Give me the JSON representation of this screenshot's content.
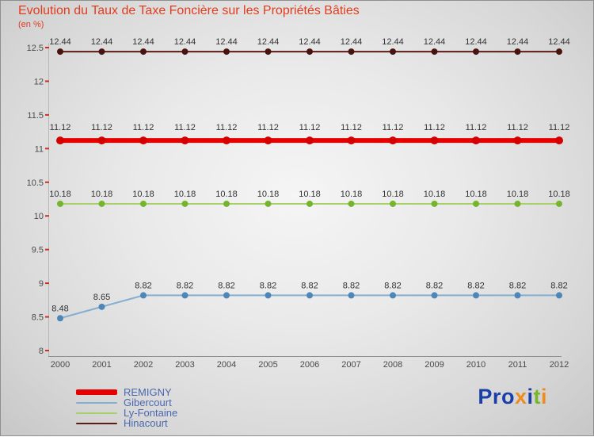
{
  "header": {
    "title_color": "#e23c1e",
    "axis_label_color": "#4a4a4a",
    "value_label_color": "#333333"
  },
  "chart_data": {
    "type": "line",
    "title": "Evolution du Taux de Taxe Foncière sur les Propriétés Bâties",
    "subtitle": "(en %)",
    "xlabel": "",
    "ylabel": "en %",
    "x": [
      "2000",
      "2001",
      "2002",
      "2003",
      "2004",
      "2005",
      "2006",
      "2007",
      "2008",
      "2009",
      "2010",
      "2011",
      "2012"
    ],
    "ylim": [
      8,
      12.5
    ],
    "yticks": [
      8,
      8.5,
      9,
      9.5,
      10,
      10.5,
      11,
      11.5,
      12,
      12.5
    ],
    "grid": false,
    "legend_position": "bottom-left",
    "series": [
      {
        "name": "REMIGNY",
        "color": "#e60000",
        "marker_color": "#d40000",
        "line_width": 6,
        "marker_radius": 5,
        "values": [
          11.12,
          11.12,
          11.12,
          11.12,
          11.12,
          11.12,
          11.12,
          11.12,
          11.12,
          11.12,
          11.12,
          11.12,
          11.12
        ]
      },
      {
        "name": "Gibercourt",
        "color": "#85aed1",
        "marker_color": "#4e86b8",
        "line_width": 2,
        "marker_radius": 4,
        "values": [
          8.48,
          8.65,
          8.82,
          8.82,
          8.82,
          8.82,
          8.82,
          8.82,
          8.82,
          8.82,
          8.82,
          8.82,
          8.82
        ]
      },
      {
        "name": "Ly-Fontaine",
        "color": "#a8d068",
        "marker_color": "#74b52d",
        "line_width": 2,
        "marker_radius": 4,
        "values": [
          10.18,
          10.18,
          10.18,
          10.18,
          10.18,
          10.18,
          10.18,
          10.18,
          10.18,
          10.18,
          10.18,
          10.18,
          10.18
        ]
      },
      {
        "name": "Hinacourt",
        "color": "#5c1b15",
        "marker_color": "#49130f",
        "line_width": 2,
        "marker_radius": 4,
        "values": [
          12.44,
          12.44,
          12.44,
          12.44,
          12.44,
          12.44,
          12.44,
          12.44,
          12.44,
          12.44,
          12.44,
          12.44,
          12.44
        ]
      }
    ]
  },
  "legend": {
    "text_color": "#4a68b0"
  },
  "logo": {
    "text": "Proxiti",
    "letters": [
      {
        "ch": "P",
        "color": "#1b3faa"
      },
      {
        "ch": "r",
        "color": "#1b3faa"
      },
      {
        "ch": "o",
        "color": "#1b3faa"
      },
      {
        "ch": "x",
        "color": "#f08c1e"
      },
      {
        "ch": "i",
        "color": "#1b3faa"
      },
      {
        "ch": "t",
        "color": "#76b82a"
      },
      {
        "ch": "i",
        "color": "#f08c1e"
      }
    ]
  }
}
